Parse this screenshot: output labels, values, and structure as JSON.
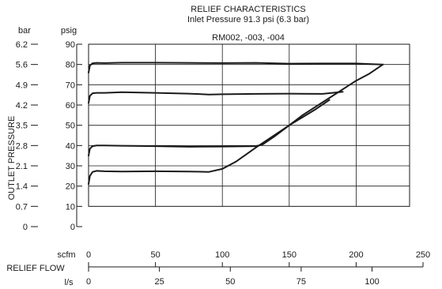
{
  "chart_data": {
    "type": "line",
    "title": "RELIEF CHARACTERISTICS",
    "subtitle": "Inlet Pressure 91.3 psi (6.3 bar)",
    "model": "RM002, -003, -004",
    "ylabel": "OUTLET PRESSURE",
    "xlabel": "RELIEF FLOW",
    "y_units": {
      "psig": "psig",
      "bar": "bar"
    },
    "x_units": {
      "scfm": "scfm",
      "ls": "l/s"
    },
    "ylim_psig": [
      0,
      90
    ],
    "xlim_scfm": [
      0,
      250
    ],
    "grid": true,
    "y_ticks_psig": [
      "0",
      "10",
      "20",
      "30",
      "40",
      "50",
      "60",
      "70",
      "80",
      "90"
    ],
    "y_ticks_bar": [
      "0",
      "0.7",
      "1.4",
      "2.1",
      "2.8",
      "3.5",
      "4.2",
      "4.9",
      "5.6",
      "6.2"
    ],
    "x_ticks_scfm": [
      "0",
      "50",
      "100",
      "150",
      "200",
      "250"
    ],
    "x_ticks_ls": [
      "0",
      "25",
      "50",
      "75",
      "100"
    ],
    "series": [
      {
        "x": [
          0,
          1,
          3,
          6,
          12,
          25,
          50,
          75,
          100,
          125,
          150,
          175,
          200,
          212,
          220
        ],
        "y": [
          76,
          79.5,
          80.6,
          80.8,
          80.7,
          80.9,
          80.9,
          80.8,
          80.7,
          80.8,
          80.4,
          80.5,
          80.5,
          80.2,
          80.0
        ]
      },
      {
        "x": [
          0,
          1,
          3,
          6,
          12,
          25,
          50,
          75,
          90,
          100,
          125,
          150,
          175,
          190
        ],
        "y": [
          61,
          64.5,
          65.8,
          66.0,
          66.0,
          66.3,
          66.0,
          65.6,
          65.2,
          65.3,
          65.5,
          65.6,
          65.5,
          66.5
        ]
      },
      {
        "x": [
          0,
          1,
          3,
          6,
          12,
          25,
          50,
          75,
          100,
          125,
          130,
          140,
          150,
          160,
          180,
          200,
          210,
          220
        ],
        "y": [
          35,
          38.5,
          39.7,
          40.0,
          40.0,
          39.9,
          39.7,
          39.4,
          39.5,
          39.7,
          40.5,
          45,
          50,
          55,
          63.5,
          72,
          75.5,
          80
        ]
      },
      {
        "x": [
          0,
          1,
          3,
          6,
          12,
          25,
          50,
          75,
          90,
          100,
          110,
          125,
          150,
          170,
          180
        ],
        "y": [
          21,
          25,
          27,
          27.5,
          27.3,
          27.2,
          27.3,
          27.2,
          27.0,
          28.5,
          32,
          39,
          50,
          58,
          62.5
        ]
      }
    ]
  }
}
